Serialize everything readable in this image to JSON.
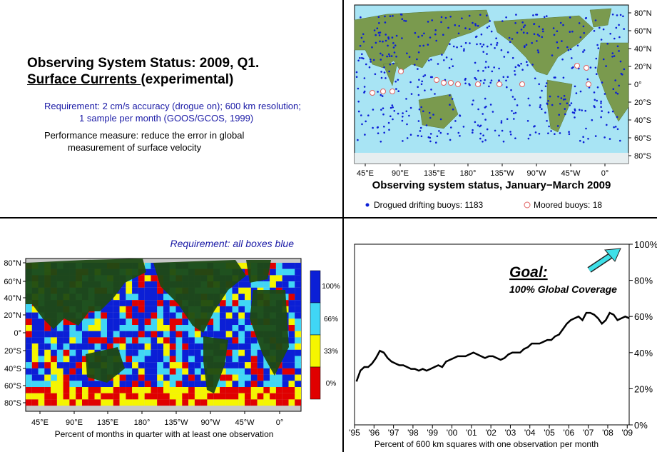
{
  "slide": {
    "title_line1": "Observing System Status:  2009, Q1.",
    "title_line2_underlined": "Surface Currents ",
    "title_line2_rest": "(experimental)",
    "requirement_line1": "Requirement: 2 cm/s accuracy (drogue on); 600 km resolution;",
    "requirement_line2": "1 sample per month (GOOS/GCOS, 1999)",
    "performance_line1": "Performance measure: reduce the error in global",
    "performance_line2": "measurement of surface velocity"
  },
  "colors": {
    "blue": "#0b1fd6",
    "cyan": "#40d6f5",
    "yellow": "#f5f500",
    "red": "#e00000",
    "land_dark": "#1e4a14",
    "ocean_light": "#a8e4f4",
    "arrow": "#3ee0e8",
    "requirement_text": "#1a1aa6"
  },
  "buoy_map": {
    "lon_ticks": [
      "45°E",
      "90°E",
      "135°E",
      "180°",
      "135°W",
      "90°W",
      "45°W",
      "0°"
    ],
    "lat_ticks": [
      "80°N",
      "60°N",
      "40°N",
      "20°N",
      "0°",
      "20°S",
      "40°S",
      "60°S",
      "80°S"
    ],
    "caption": "Observing system status, January−March 2009",
    "legend_drifting": "Drogued drifting buoys: 1183",
    "legend_moored": "Moored buoys: 18"
  },
  "coverage_map": {
    "requirement_note": "Requirement: all boxes blue",
    "lon_ticks": [
      "45°E",
      "90°E",
      "135°E",
      "180°",
      "135°W",
      "90°W",
      "45°W",
      "0°"
    ],
    "lat_ticks": [
      "80°N",
      "60°N",
      "40°N",
      "20°N",
      "0°",
      "20°S",
      "40°S",
      "60°S",
      "80°S"
    ],
    "colorbar_labels": [
      "100%",
      "66%",
      "33%",
      "0%"
    ],
    "caption": "Percent of months in quarter with at least one observation"
  },
  "chart_data": {
    "type": "line",
    "title": "",
    "xlabel": "Percent of 600 km squares with one observation per month",
    "ylabel": "",
    "x_tick_labels": [
      "'95",
      "'96",
      "'97",
      "'98",
      "'99",
      "'00",
      "'01",
      "'02",
      "'03",
      "'04",
      "'05",
      "'06",
      "'07",
      "'08",
      "'09"
    ],
    "y_tick_labels": [
      "0%",
      "20%",
      "40%",
      "60%",
      "80%",
      "100%"
    ],
    "ylim": [
      0,
      100
    ],
    "xlim": [
      1995,
      2009.1
    ],
    "goal_label": "Goal:",
    "goal_text": "100% Global Coverage",
    "series": [
      {
        "x": [
          1995.1,
          1995.3,
          1995.5,
          1995.7,
          1995.9,
          1996.1,
          1996.3,
          1996.5,
          1996.7,
          1996.9,
          1997.1,
          1997.3,
          1997.5,
          1997.7,
          1997.9,
          1998.1,
          1998.3,
          1998.5,
          1998.7,
          1998.9,
          1999.1,
          1999.3,
          1999.5,
          1999.7,
          1999.9,
          2000.1,
          2000.3,
          2000.5,
          2000.7,
          2000.9,
          2001.1,
          2001.3,
          2001.5,
          2001.7,
          2001.9,
          2002.1,
          2002.3,
          2002.5,
          2002.7,
          2002.9,
          2003.1,
          2003.3,
          2003.5,
          2003.7,
          2003.9,
          2004.1,
          2004.3,
          2004.5,
          2004.7,
          2004.9,
          2005.1,
          2005.3,
          2005.5,
          2005.7,
          2005.9,
          2006.1,
          2006.3,
          2006.5,
          2006.7,
          2006.9,
          2007.1,
          2007.3,
          2007.5,
          2007.7,
          2007.9,
          2008.1,
          2008.3,
          2008.5,
          2008.7,
          2008.9,
          2009.1
        ],
        "y": [
          24,
          30,
          32,
          32,
          34,
          37,
          41,
          40,
          37,
          35,
          34,
          33,
          33,
          32,
          31,
          31,
          30,
          31,
          30,
          31,
          32,
          33,
          32,
          35,
          36,
          37,
          38,
          38,
          38,
          39,
          40,
          39,
          38,
          37,
          38,
          38,
          37,
          36,
          37,
          39,
          40,
          40,
          40,
          42,
          43,
          45,
          45,
          45,
          46,
          47,
          47,
          49,
          50,
          53,
          56,
          58,
          59,
          60,
          58,
          62,
          62,
          61,
          59,
          56,
          58,
          62,
          61,
          58,
          59,
          60,
          59
        ]
      }
    ]
  }
}
